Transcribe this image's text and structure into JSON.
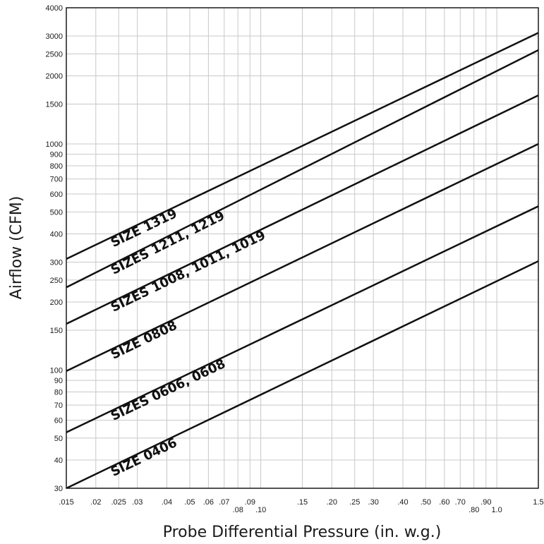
{
  "chart_data": {
    "type": "line",
    "title": "",
    "xlabel": "Probe Differential Pressure (in. w.g.)",
    "ylabel": "Airflow (CFM)",
    "x_scale": "log",
    "y_scale": "log",
    "xlim": [
      0.015,
      1.5
    ],
    "ylim": [
      30,
      4000
    ],
    "grid": true,
    "legend": "none (labels placed on lines)",
    "x_ticks": [
      {
        "value": 0.015,
        "label": ".015",
        "row": 0
      },
      {
        "value": 0.02,
        "label": ".02",
        "row": 0
      },
      {
        "value": 0.025,
        "label": ".025",
        "row": 0
      },
      {
        "value": 0.03,
        "label": ".03",
        "row": 0
      },
      {
        "value": 0.04,
        "label": ".04",
        "row": 0
      },
      {
        "value": 0.05,
        "label": ".05",
        "row": 0
      },
      {
        "value": 0.06,
        "label": ".06",
        "row": 0
      },
      {
        "value": 0.07,
        "label": ".07",
        "row": 0
      },
      {
        "value": 0.08,
        "label": ".08",
        "row": 1
      },
      {
        "value": 0.09,
        "label": ".09",
        "row": 0
      },
      {
        "value": 0.1,
        "label": ".10",
        "row": 1
      },
      {
        "value": 0.15,
        "label": ".15",
        "row": 0
      },
      {
        "value": 0.2,
        "label": ".20",
        "row": 0
      },
      {
        "value": 0.25,
        "label": ".25",
        "row": 0
      },
      {
        "value": 0.3,
        "label": ".30",
        "row": 0
      },
      {
        "value": 0.4,
        "label": ".40",
        "row": 0
      },
      {
        "value": 0.5,
        "label": ".50",
        "row": 0
      },
      {
        "value": 0.6,
        "label": ".60",
        "row": 0
      },
      {
        "value": 0.7,
        "label": ".70",
        "row": 0
      },
      {
        "value": 0.8,
        "label": ".80",
        "row": 1
      },
      {
        "value": 0.9,
        "label": ".90",
        "row": 0
      },
      {
        "value": 1.0,
        "label": "1.0",
        "row": 1
      },
      {
        "value": 1.5,
        "label": "1.5",
        "row": 0
      }
    ],
    "y_ticks": [
      {
        "value": 30,
        "label": "30"
      },
      {
        "value": 40,
        "label": "40"
      },
      {
        "value": 50,
        "label": "50"
      },
      {
        "value": 60,
        "label": "60"
      },
      {
        "value": 70,
        "label": "70"
      },
      {
        "value": 80,
        "label": "80"
      },
      {
        "value": 90,
        "label": "90"
      },
      {
        "value": 100,
        "label": "100"
      },
      {
        "value": 150,
        "label": "150"
      },
      {
        "value": 200,
        "label": "200"
      },
      {
        "value": 250,
        "label": "250"
      },
      {
        "value": 300,
        "label": "300"
      },
      {
        "value": 400,
        "label": "400"
      },
      {
        "value": 500,
        "label": "500"
      },
      {
        "value": 600,
        "label": "600"
      },
      {
        "value": 700,
        "label": "700"
      },
      {
        "value": 800,
        "label": "800"
      },
      {
        "value": 900,
        "label": "900"
      },
      {
        "value": 1000,
        "label": "1000"
      },
      {
        "value": 1500,
        "label": "1500"
      },
      {
        "value": 2000,
        "label": "2000"
      },
      {
        "value": 2500,
        "label": "2500"
      },
      {
        "value": 3000,
        "label": "3000"
      },
      {
        "value": 4000,
        "label": "4000"
      }
    ],
    "series": [
      {
        "name": "SIZE 1319",
        "x": [
          0.015,
          1.5
        ],
        "y": [
          310,
          3100
        ],
        "label_at": 0.03
      },
      {
        "name": "SIZES 1211, 1219",
        "x": [
          0.015,
          1.5
        ],
        "y": [
          232,
          2600
        ],
        "label_at": 0.03
      },
      {
        "name": "SIZES 1008, 1011, 1019",
        "x": [
          0.015,
          1.5
        ],
        "y": [
          160,
          1640
        ],
        "label_at": 0.03
      },
      {
        "name": "SIZE 0808",
        "x": [
          0.015,
          1.5
        ],
        "y": [
          99,
          1000
        ],
        "label_at": 0.03
      },
      {
        "name": "SIZES 0606, 0608",
        "x": [
          0.015,
          1.5
        ],
        "y": [
          53,
          530
        ],
        "label_at": 0.03
      },
      {
        "name": "SIZE 0406",
        "x": [
          0.015,
          1.5
        ],
        "y": [
          30,
          303
        ],
        "label_at": 0.03
      }
    ]
  }
}
